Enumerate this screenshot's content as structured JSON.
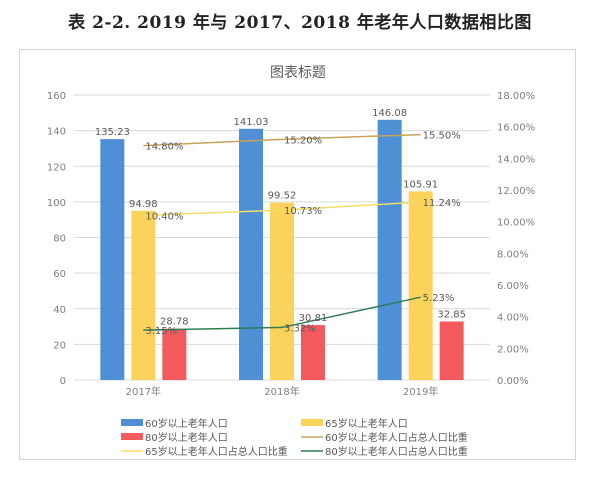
{
  "page": {
    "title": "表 2-2.  2019 年与 2017、2018 年老年人口数据相比图"
  },
  "chart_data": {
    "type": "bar",
    "title": "图表标题",
    "xlabel": "",
    "ylabel": "",
    "categories": [
      "2017年",
      "2018年",
      "2019年"
    ],
    "grid": true,
    "legend_position": "bottom",
    "y_left": {
      "range": [
        0,
        160
      ],
      "ticks": [
        "0",
        "20",
        "40",
        "60",
        "80",
        "100",
        "120",
        "140",
        "160"
      ]
    },
    "y_right": {
      "range": [
        0,
        18
      ],
      "ticks": [
        "0.00%",
        "2.00%",
        "4.00%",
        "6.00%",
        "8.00%",
        "10.00%",
        "12.00%",
        "14.00%",
        "16.00%",
        "18.00%"
      ]
    },
    "series": [
      {
        "name": "60岁以上老年人口",
        "kind": "bar",
        "axis": "left",
        "color": "#4e8fd6",
        "values": [
          135.23,
          141.03,
          146.08
        ],
        "labels": [
          "135.23",
          "141.03",
          "146.08"
        ]
      },
      {
        "name": "65岁以上老年人口",
        "kind": "bar",
        "axis": "left",
        "color": "#fbd35a",
        "values": [
          94.98,
          99.52,
          105.91
        ],
        "labels": [
          "94.98",
          "99.52",
          "105.91"
        ]
      },
      {
        "name": "80岁以上老年人口",
        "kind": "bar",
        "axis": "left",
        "color": "#f25a5e",
        "values": [
          28.78,
          30.81,
          32.85
        ],
        "labels": [
          "28.78",
          "30.81",
          "32.85"
        ]
      },
      {
        "name": "60岁以上老年人口占总人口比重",
        "kind": "line",
        "axis": "right",
        "color": "#c9a25c",
        "values": [
          14.8,
          15.2,
          15.5
        ],
        "labels": [
          "14.80%",
          "15.20%",
          "15.50%"
        ]
      },
      {
        "name": "65岁以上老年人口占总人口比重",
        "kind": "line",
        "axis": "right",
        "color": "#f2dc6a",
        "values": [
          10.4,
          10.73,
          11.24
        ],
        "labels": [
          "10.40%",
          "10.73%",
          "11.24%"
        ]
      },
      {
        "name": "80岁以上老年人口占总人口比重",
        "kind": "line",
        "axis": "right",
        "color": "#2e7d55",
        "values": [
          3.15,
          3.32,
          5.23
        ],
        "labels": [
          "3.15%",
          "3.32%",
          "5.23%"
        ]
      }
    ]
  }
}
